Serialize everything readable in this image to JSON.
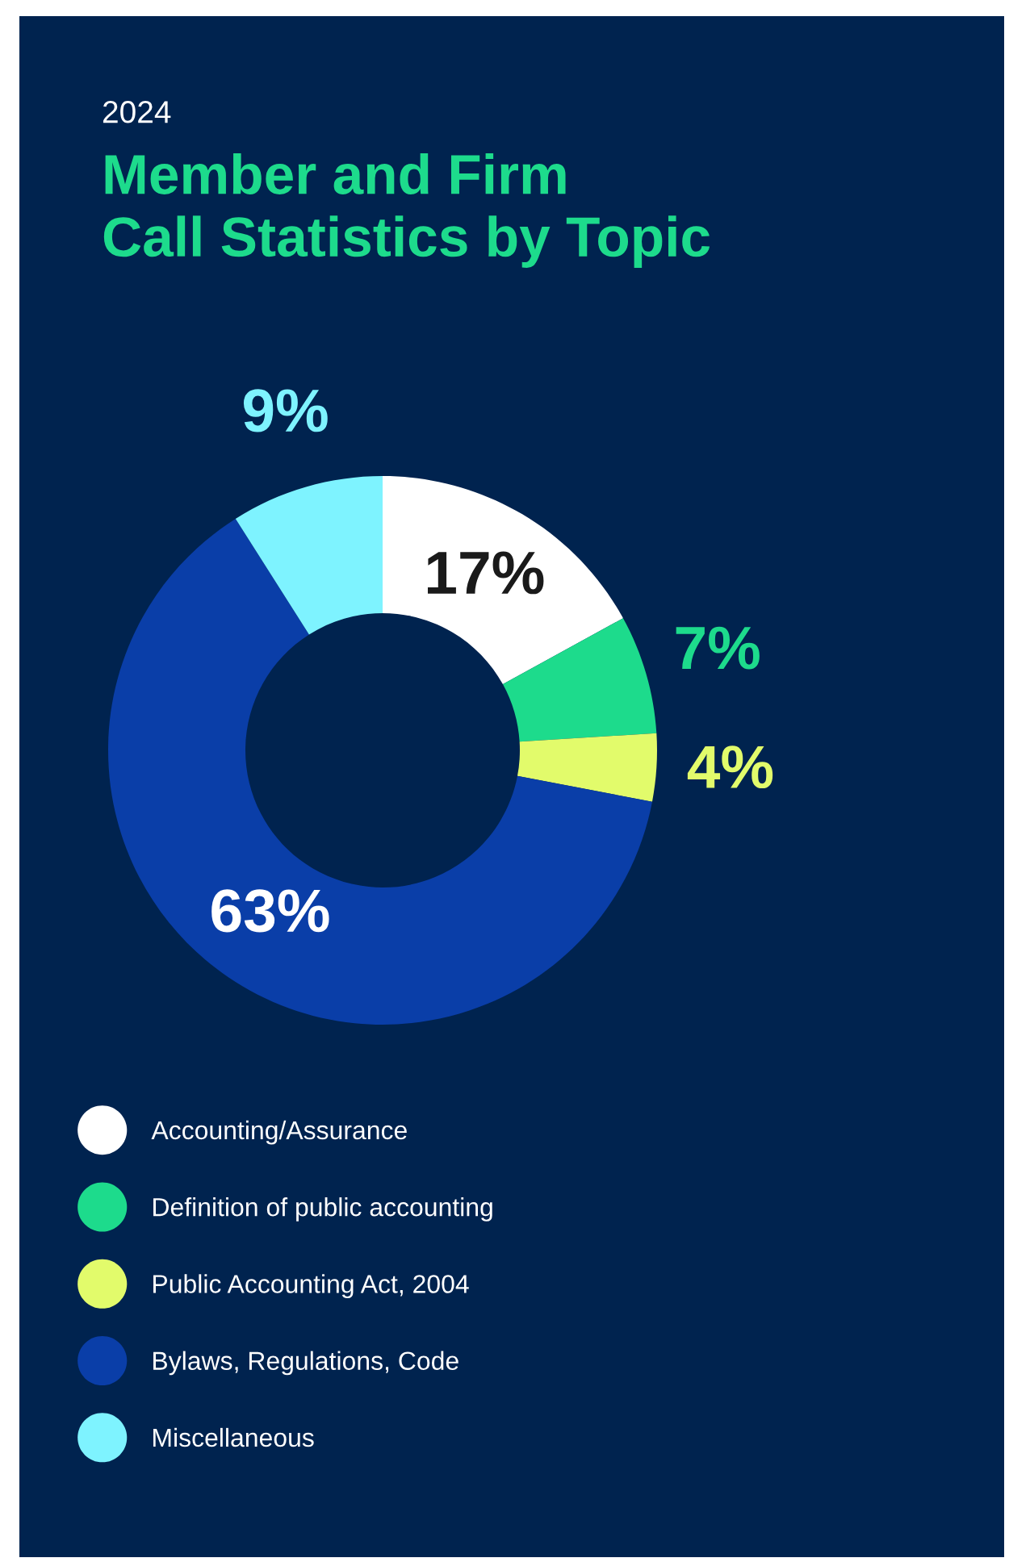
{
  "chart_data": {
    "type": "donut",
    "subtitle": "2024",
    "title": "Member and Firm\nCall Statistics by Topic",
    "categories": [
      "Accounting/Assurance",
      "Definition of public accounting",
      "Public Accounting Act, 2004",
      "Bylaws, Regulations, Code",
      "Miscellaneous"
    ],
    "values": [
      17,
      7,
      4,
      63,
      9
    ],
    "colors": [
      "#ffffff",
      "#1ddb8c",
      "#e2fb6b",
      "#0a3ea8",
      "#7ef3ff"
    ],
    "value_labels": [
      "17%",
      "7%",
      "4%",
      "63%",
      "9%"
    ],
    "legend": "bottom"
  }
}
